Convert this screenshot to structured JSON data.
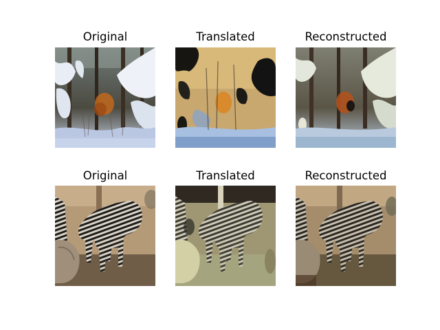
{
  "rows": [
    {
      "scene": "snowy-forest",
      "panels": [
        {
          "title": "Original"
        },
        {
          "title": "Translated"
        },
        {
          "title": "Reconstructed"
        }
      ]
    },
    {
      "scene": "zebras",
      "panels": [
        {
          "title": "Original"
        },
        {
          "title": "Translated"
        },
        {
          "title": "Reconstructed"
        }
      ]
    }
  ],
  "palette": {
    "snow": "#e9eef6",
    "bark": "#3a2d22",
    "autumn_orange": "#c2691d",
    "sky_blue": "#a9c3e6",
    "sand": "#b59a78",
    "zebra_dark": "#1e1c1a",
    "zebra_light": "#d9d4c8"
  }
}
